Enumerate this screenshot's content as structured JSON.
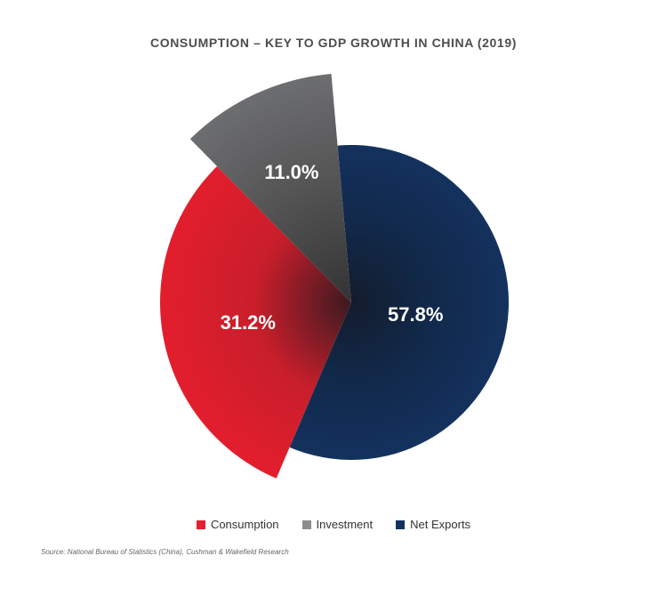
{
  "chart_data": {
    "type": "pie",
    "title": "CONSUMPTION – KEY TO GDP GROWTH IN CHINA (2019)",
    "slices": [
      {
        "name": "Net Exports",
        "value": 57.8,
        "label": "57.8%",
        "color": "#14325f"
      },
      {
        "name": "Consumption",
        "value": 31.2,
        "label": "31.2%",
        "color": "#e31e2d"
      },
      {
        "name": "Investment",
        "value": 11.0,
        "label": "11.0%",
        "color": "#6d6e70"
      }
    ],
    "legend": {
      "placement": "bottom-center",
      "items": [
        {
          "label": "Consumption",
          "color": "#e31e2d"
        },
        {
          "label": "Investment",
          "color": "#8a8b8d"
        },
        {
          "label": "Net Exports",
          "color": "#14325f"
        }
      ]
    },
    "source": "Source: National Bureau of Statistics (China), Cushman & Wakefield Research"
  }
}
